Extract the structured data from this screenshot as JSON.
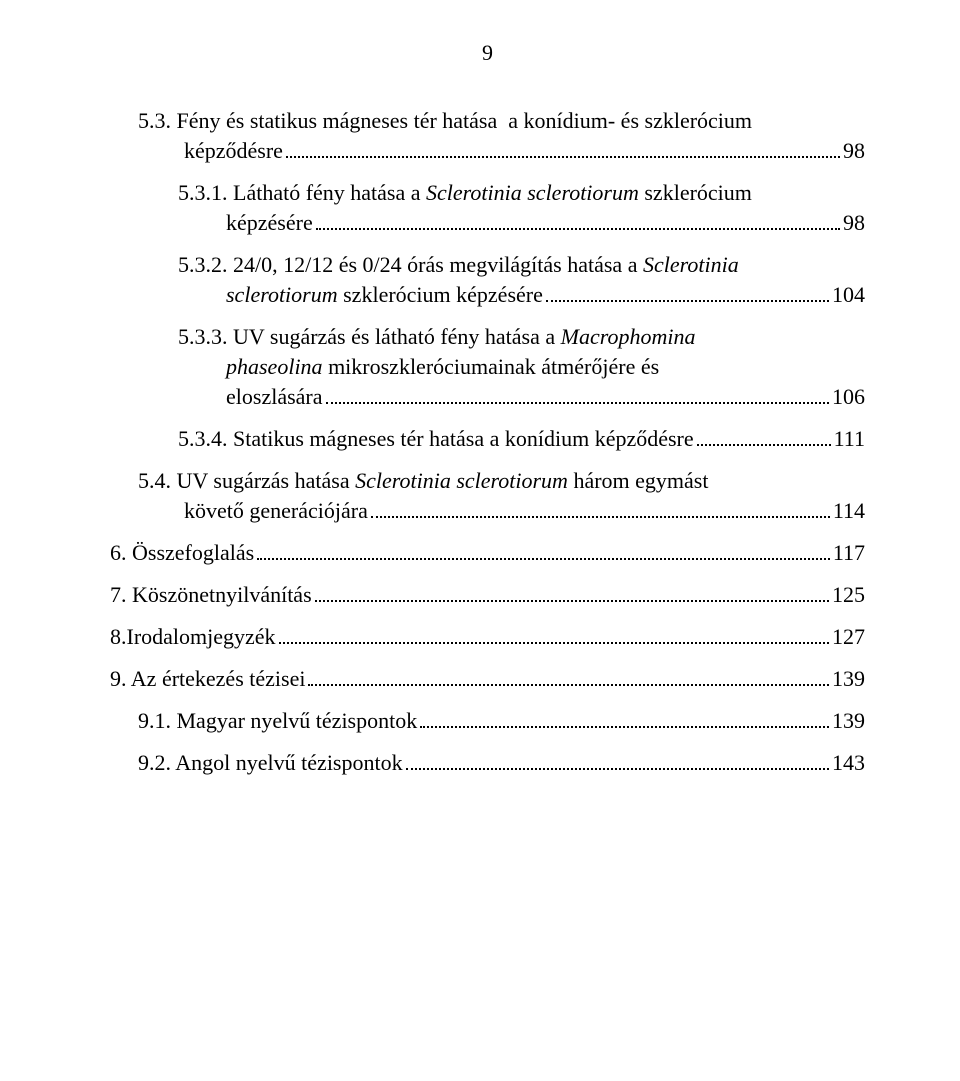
{
  "pageNumber": "9",
  "font": {
    "family": "Times New Roman",
    "sizePt": 16,
    "color": "#000000"
  },
  "leaderColor": "#000000",
  "backgroundColor": "#ffffff",
  "entries": [
    {
      "indentClass": "ind-0",
      "contClass": "ind-hang-a",
      "line1_pre": "5.3. Fény és statikus mágneses tér hatása  a konídium- és szklerócium",
      "line2_pre": "képz",
      "line2_post": "désre",
      "line2_glyph": "ő",
      "page": "98"
    },
    {
      "indentClass": "ind-1",
      "contClass": "ind-hang-b",
      "line1_pre": "5.3.1. Látható fény hatása a ",
      "line1_it": "Sclerotinia sclerotiorum",
      "line1_post": " szklerócium",
      "line2_pre": "képzésére",
      "page": "98"
    },
    {
      "indentClass": "ind-1",
      "contClass": "ind-hang-b",
      "line1_pre": "5.3.2. 24/0, 12/12 és 0/24 órás megvilágítás hatása a ",
      "line1_it": "Sclerotinia",
      "line2_it": "sclerotiorum",
      "line2_post": " szklerócium képzésére",
      "page": "104"
    },
    {
      "indentClass": "ind-1",
      "contClass": "ind-hang-b",
      "line1_pre": "5.3.3. UV sugárzás és látható fény hatása a ",
      "line1_it": "Macrophomina",
      "line2_it": "phaseolina",
      "line2_post_pre": " mikroszkleróciumainak átmér",
      "line2_post_glyph": "ő",
      "line2_post_post": "jére és",
      "line3_pre": "eloszlására",
      "page": "106"
    },
    {
      "indentClass": "ind-1",
      "line1_pre": "5.3.4. Statikus mágneses tér hatása a konídium képz",
      "line1_glyph": "ő",
      "line1_post": "désre",
      "page": "111"
    },
    {
      "indentClass": "ind-0",
      "contClass": "ind-hang-a",
      "line1_pre": "5.4. UV sugárzás hatása ",
      "line1_it": "Sclerotinia sclerotiorum",
      "line1_post": " három egymást",
      "line2_pre_a": "követ",
      "line2_glyph": "ő",
      "line2_pre_b": " generációjára",
      "page": "114"
    },
    {
      "indentClass": "",
      "line1_pre": "6. Összefoglalás",
      "page": "117"
    },
    {
      "indentClass": "",
      "line1_pre": "7. Köszönetnyilvánítás",
      "page": "125"
    },
    {
      "indentClass": "",
      "line1_pre": "8.Irodalomjegyzék",
      "page": "127"
    },
    {
      "indentClass": "",
      "line1_pre": "9. Az értekezés tézisei",
      "page": "139"
    },
    {
      "indentClass": "ind-0",
      "line1_pre": "9.1. Magyar nyelv",
      "line1_glyph": "ű",
      "line1_post": " tézispontok",
      "page": "139"
    },
    {
      "indentClass": "ind-0",
      "line1_pre": "9.2. Angol nyelv",
      "line1_glyph": "ű",
      "line1_post": " tézispontok",
      "page": "143"
    }
  ]
}
